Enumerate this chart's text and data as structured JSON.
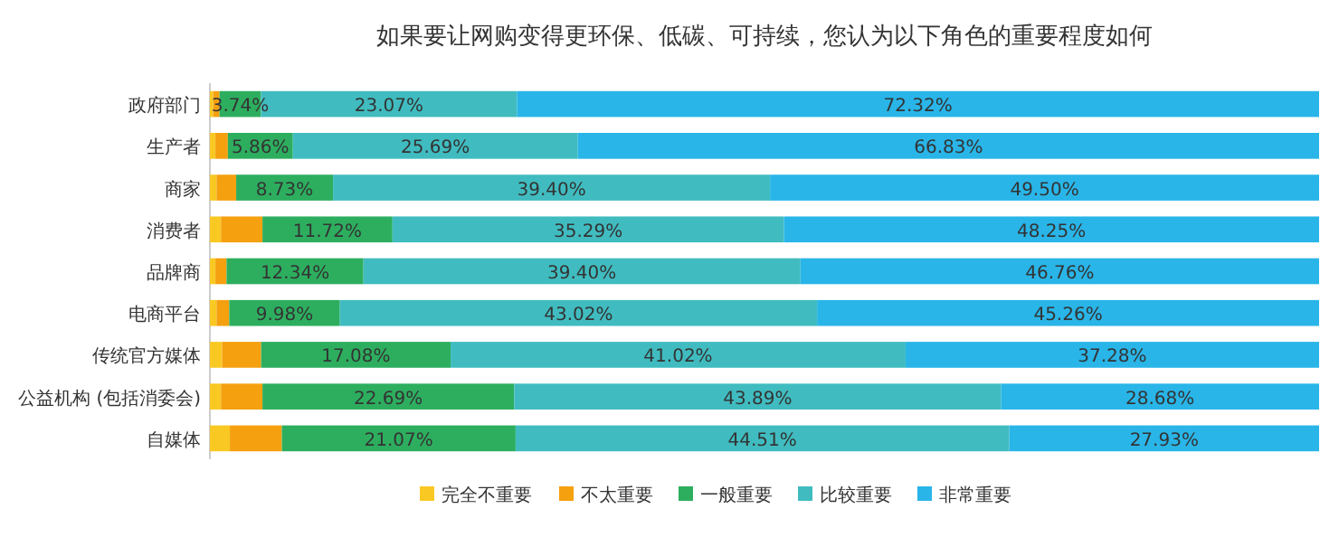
{
  "chart_data": {
    "type": "bar",
    "orientation": "horizontal",
    "stacked": true,
    "title": "如果要让网购变得更环保、低碳、可持续，您认为以下角色的重要程度如何",
    "categories": [
      "政府部门",
      "生产者",
      "商家",
      "消费者",
      "品牌商",
      "电商平台",
      "传统官方媒体",
      "公益机构 (包括消委会)",
      "自媒体"
    ],
    "legend": "bottom",
    "series": [
      {
        "name": "完全不重要",
        "color": "#f9c823",
        "values": [
          0.3,
          0.5,
          0.6,
          1.0,
          0.5,
          0.6,
          1.1,
          1.0,
          1.8
        ]
      },
      {
        "name": "不太重要",
        "color": "#f5a00f",
        "values": [
          0.57,
          1.12,
          1.77,
          3.74,
          1.0,
          1.14,
          3.52,
          3.74,
          4.69
        ]
      },
      {
        "name": "一般重要",
        "color": "#2dae5f",
        "values": [
          3.74,
          5.86,
          8.73,
          11.72,
          12.34,
          9.98,
          17.08,
          22.69,
          21.07
        ],
        "value_labels": [
          "3.74%",
          "5.86%",
          "8.73%",
          "11.72%",
          "12.34%",
          "9.98%",
          "17.08%",
          "22.69%",
          "21.07%"
        ]
      },
      {
        "name": "比较重要",
        "color": "#40bcc0",
        "values": [
          23.07,
          25.69,
          39.4,
          35.29,
          39.4,
          43.02,
          41.02,
          43.89,
          44.51
        ],
        "value_labels": [
          "23.07%",
          "25.69%",
          "39.40%",
          "35.29%",
          "39.40%",
          "43.02%",
          "41.02%",
          "43.89%",
          "44.51%"
        ]
      },
      {
        "name": "非常重要",
        "color": "#29b5e8",
        "values": [
          72.32,
          66.83,
          49.5,
          48.25,
          46.76,
          45.26,
          37.28,
          28.68,
          27.93
        ],
        "value_labels": [
          "72.32%",
          "66.83%",
          "49.50%",
          "48.25%",
          "46.76%",
          "45.26%",
          "37.28%",
          "28.68%",
          "27.93%"
        ]
      }
    ]
  }
}
